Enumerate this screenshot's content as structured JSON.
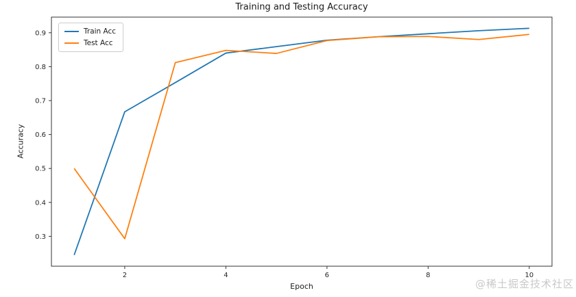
{
  "chart_data": {
    "type": "line",
    "title": "Training and Testing Accuracy",
    "xlabel": "Epoch",
    "ylabel": "Accuracy",
    "x": [
      1,
      2,
      3,
      4,
      5,
      6,
      7,
      8,
      9,
      10
    ],
    "series": [
      {
        "name": "Train Acc",
        "color": "#1f77b4",
        "values": [
          0.245,
          0.667,
          0.753,
          0.84,
          0.859,
          0.878,
          0.888,
          0.897,
          0.906,
          0.913
        ]
      },
      {
        "name": "Test Acc",
        "color": "#ff7f0e",
        "values": [
          0.5,
          0.293,
          0.812,
          0.848,
          0.839,
          0.877,
          0.888,
          0.889,
          0.88,
          0.895
        ]
      }
    ],
    "xlim": [
      0.55,
      10.45
    ],
    "ylim": [
      0.212,
      0.946
    ],
    "xticks": [
      2,
      4,
      6,
      8,
      10
    ],
    "yticks": [
      0.3,
      0.4,
      0.5,
      0.6,
      0.7,
      0.8,
      0.9
    ],
    "grid": false,
    "legend_position": "upper left",
    "spine_color": "#333333",
    "tick_color": "#262626",
    "line_width": 1.8
  },
  "watermark": {
    "text": "@稀土掘金技术社区",
    "color": "#c9c9c9"
  }
}
